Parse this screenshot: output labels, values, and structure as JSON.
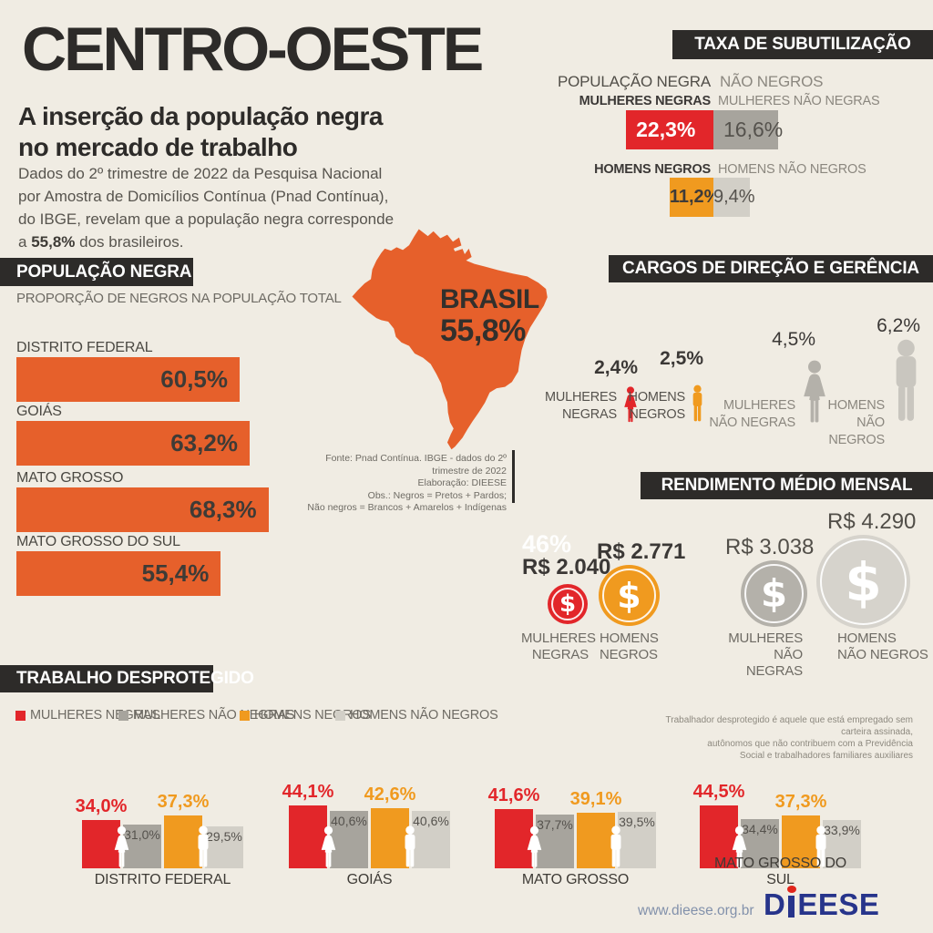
{
  "title": "CENTRO-OESTE",
  "subtitle": {
    "line1": "A inserção da população negra",
    "line2": "no mercado de trabalho"
  },
  "intro": {
    "line1": "Dados do 2º trimestre de 2022 da Pesquisa Nacional",
    "line2": "por Amostra de Domicílios Contínua (Pnad Contínua),",
    "line3": "do IBGE, revelam que a população negra corresponde",
    "line4_prefix": "a ",
    "line4_bold": "55,8%",
    "line4_suffix": " dos brasileiros."
  },
  "populacao": {
    "header": "POPULAÇÃO NEGRA",
    "subtitle": "PROPORÇÃO DE NEGROS NA POPULAÇÃO TOTAL",
    "bars": [
      {
        "label": "DISTRITO FEDERAL",
        "value": "60,5%"
      },
      {
        "label": "GOIÁS",
        "value": "63,2%"
      },
      {
        "label": "MATO GROSSO",
        "value": "68,3%"
      },
      {
        "label": "MATO GROSSO DO SUL",
        "value": "55,4%"
      }
    ]
  },
  "map": {
    "country": "BRASIL",
    "value": "55,8%"
  },
  "fonte": {
    "line1": "Fonte: Pnad Contínua. IBGE - dados do 2º trimestre de 2022",
    "line2": "Elaboração: DIEESE",
    "line3": "Obs.: Negros = Pretos + Pardos;",
    "line4": "Não negros = Brancos + Amarelos + Indígenas"
  },
  "subutilizacao": {
    "header": "TAXA DE SUBUTILIZAÇÃO",
    "group_negra": "POPULAÇÃO NEGRA",
    "group_nao": "NÃO NEGROS",
    "rows": [
      {
        "label_negra": "MULHERES NEGRAS",
        "label_nao": "MULHERES NÃO NEGRAS",
        "value_negra": "22,3%",
        "value_nao": "16,6%"
      },
      {
        "label_negra": "HOMENS NEGROS",
        "label_nao": "HOMENS NÃO NEGROS",
        "value_negra": "11,2%",
        "value_nao": "9,4%"
      }
    ]
  },
  "cargos": {
    "header": "CARGOS DE DIREÇÃO E GERÊNCIA",
    "items": [
      {
        "value": "2,4%",
        "label1": "MULHERES",
        "label2": "NEGRAS"
      },
      {
        "value": "2,5%",
        "label1": "HOMENS",
        "label2": "NEGROS"
      },
      {
        "value": "4,5%",
        "label1": "MULHERES",
        "label2": "NÃO NEGRAS"
      },
      {
        "value": "6,2%",
        "label1": "HOMENS",
        "label2": "NÃO NEGROS"
      }
    ]
  },
  "rendimento": {
    "header": "RENDIMENTO MÉDIO MENSAL",
    "highlight": "46%",
    "currency_symbol": "$",
    "items": [
      {
        "value": "R$ 2.040",
        "label1": "MULHERES",
        "label2": "NEGRAS"
      },
      {
        "value": "R$ 2.771",
        "label1": "HOMENS",
        "label2": "NEGROS"
      },
      {
        "value": "R$ 3.038",
        "label1": "MULHERES",
        "label2": "NÃO NEGRAS"
      },
      {
        "value": "R$ 4.290",
        "label1": "HOMENS",
        "label2": "NÃO NEGROS"
      }
    ]
  },
  "trabalho": {
    "header": "TRABALHO DESPROTEGIDO",
    "legend": [
      {
        "label": "MULHERES NEGRAS",
        "color": "#e2262a"
      },
      {
        "label": "MULHERES NÃO NEGRAS",
        "color": "#a7a49d"
      },
      {
        "label": "HOMENS NEGROS",
        "color": "#f09a1f"
      },
      {
        "label": "HOMENS NÃO NEGROS",
        "color": "#d2cfc7"
      }
    ],
    "note": {
      "line1": "Trabalhador desprotegido é aquele que está empregado sem carteira assinada,",
      "line2": "autônomos que não contribuem  com a Previdência",
      "line3": "Social e trabalhadores familiares auxiliares"
    },
    "groups": [
      {
        "label": "DISTRITO FEDERAL",
        "values": [
          "34,0%",
          "31,0%",
          "37,3%",
          "29,5%"
        ]
      },
      {
        "label": "GOIÁS",
        "values": [
          "44,1%",
          "40,6%",
          "42,6%",
          "40,6%"
        ]
      },
      {
        "label": "MATO GROSSO",
        "values": [
          "41,6%",
          "37,7%",
          "39,1%",
          "39,5%"
        ]
      },
      {
        "label": "MATO GROSSO DO SUL",
        "values": [
          "44,5%",
          "34,4%",
          "37,3%",
          "33,9%"
        ]
      }
    ]
  },
  "footer": {
    "url": "www.dieese.org.br",
    "logo": "DIEESE",
    "logo_d": "D",
    "logo_rest": "EESE"
  },
  "colors": {
    "background": "#f0ece3",
    "dark": "#2d2b29",
    "orange_map": "#e6602b",
    "red": "#e2262a",
    "amber": "#f09a1f",
    "gray": "#a7a49d",
    "light_gray": "#d2cfc7",
    "logo_navy": "#27348b",
    "logo_dot_red": "#e1251b"
  },
  "chart_data": [
    {
      "type": "bar",
      "title": "POPULAÇÃO NEGRA — PROPORÇÃO DE NEGROS NA POPULAÇÃO TOTAL",
      "orientation": "horizontal",
      "categories": [
        "DISTRITO FEDERAL",
        "GOIÁS",
        "MATO GROSSO",
        "MATO GROSSO DO SUL"
      ],
      "values": [
        60.5,
        63.2,
        68.3,
        55.4
      ],
      "unit": "%",
      "annotation": "BRASIL 55,8%"
    },
    {
      "type": "bar",
      "title": "TAXA DE SUBUTILIZAÇÃO",
      "orientation": "horizontal",
      "categories": [
        "MULHERES NEGRAS",
        "MULHERES NÃO NEGRAS",
        "HOMENS NEGROS",
        "HOMENS NÃO NEGROS"
      ],
      "values": [
        22.3,
        16.6,
        11.2,
        9.4
      ],
      "unit": "%"
    },
    {
      "type": "pictogram",
      "title": "CARGOS DE DIREÇÃO E GERÊNCIA",
      "categories": [
        "MULHERES NEGRAS",
        "HOMENS NEGROS",
        "MULHERES NÃO NEGRAS",
        "HOMENS NÃO NEGROS"
      ],
      "values": [
        2.4,
        2.5,
        4.5,
        6.2
      ],
      "unit": "%"
    },
    {
      "type": "proportional-circles",
      "title": "RENDIMENTO MÉDIO MENSAL",
      "categories": [
        "MULHERES NEGRAS",
        "HOMENS NEGROS",
        "MULHERES NÃO NEGRAS",
        "HOMENS NÃO NEGROS"
      ],
      "values": [
        2040,
        2771,
        3038,
        4290
      ],
      "unit": "R$",
      "annotation": "46%"
    },
    {
      "type": "bar",
      "title": "TRABALHO DESPROTEGIDO",
      "orientation": "vertical",
      "categories": [
        "DISTRITO FEDERAL",
        "GOIÁS",
        "MATO GROSSO",
        "MATO GROSSO DO SUL"
      ],
      "series": [
        {
          "name": "MULHERES NEGRAS",
          "values": [
            34.0,
            44.1,
            41.6,
            44.5
          ]
        },
        {
          "name": "MULHERES NÃO NEGRAS",
          "values": [
            31.0,
            40.6,
            37.7,
            34.4
          ]
        },
        {
          "name": "HOMENS NEGROS",
          "values": [
            37.3,
            42.6,
            39.1,
            37.3
          ]
        },
        {
          "name": "HOMENS NÃO NEGROS",
          "values": [
            29.5,
            40.6,
            39.5,
            33.9
          ]
        }
      ],
      "unit": "%"
    }
  ]
}
